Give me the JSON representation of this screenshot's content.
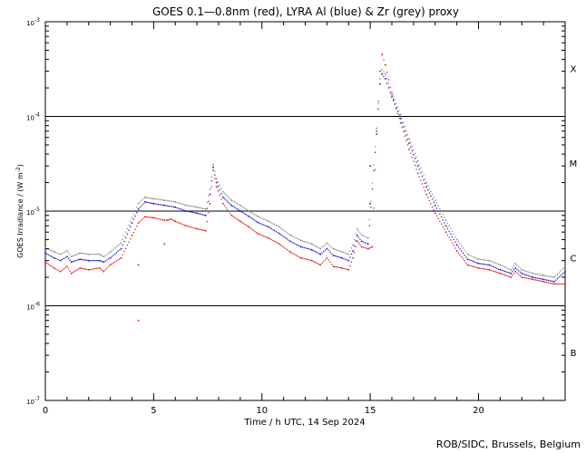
{
  "chart_data": {
    "type": "scatter",
    "title": "GOES 0.1—0.8nm (red), LYRA Al (blue) & Zr (grey) proxy",
    "xlabel": "Time / h UTC, 14 Sep 2024",
    "ylabel": "GOES Irradiance / (W m",
    "ylabel_exp": "-2",
    "ylabel_close": ")",
    "x_range": [
      0,
      24
    ],
    "y_range": [
      1e-07,
      0.001
    ],
    "y_scale": "log",
    "x_ticks": [
      {
        "value": 0,
        "label": "0"
      },
      {
        "value": 5,
        "label": "5"
      },
      {
        "value": 10,
        "label": "10"
      },
      {
        "value": 15,
        "label": "15"
      },
      {
        "value": 20,
        "label": "20"
      }
    ],
    "y_ticks": [
      {
        "value": 0.001,
        "base": "10",
        "exp": "-3"
      },
      {
        "value": 0.0001,
        "base": "10",
        "exp": "-4"
      },
      {
        "value": 1e-05,
        "base": "10",
        "exp": "-5"
      },
      {
        "value": 1e-06,
        "base": "10",
        "exp": "-6"
      },
      {
        "value": 1e-07,
        "base": "10",
        "exp": "-7"
      }
    ],
    "reference_lines": [
      0.0001,
      1e-05,
      1e-06
    ],
    "flare_classes": [
      {
        "label": "X",
        "value": 0.00032
      },
      {
        "label": "M",
        "value": 3.2e-05
      },
      {
        "label": "C",
        "value": 3.2e-06
      },
      {
        "label": "B",
        "value": 3.2e-07
      }
    ],
    "series": [
      {
        "color": "#dd0000",
        "points": [
          [
            0,
            2.9e-06
          ],
          [
            0.4,
            2.5e-06
          ],
          [
            0.7,
            2.3e-06
          ],
          [
            1.0,
            2.6e-06
          ],
          [
            1.2,
            2.2e-06
          ],
          [
            1.6,
            2.5e-06
          ],
          [
            2.0,
            2.4e-06
          ],
          [
            2.5,
            2.5e-06
          ],
          [
            2.7,
            2.3e-06
          ],
          [
            3.0,
            2.7e-06
          ],
          [
            3.5,
            3.2e-06
          ],
          [
            4.0,
            5.5e-06
          ],
          [
            4.3,
            7.5e-06
          ],
          [
            4.6,
            8.7e-06
          ],
          [
            5.0,
            8.5e-06
          ],
          [
            5.5,
            8e-06
          ],
          [
            5.6,
            8e-06
          ],
          [
            5.8,
            8.2e-06
          ],
          [
            6.0,
            7.8e-06
          ],
          [
            6.5,
            7e-06
          ],
          [
            7.0,
            6.5e-06
          ],
          [
            7.4,
            6.2e-06
          ],
          [
            7.6,
            1.2e-05
          ],
          [
            7.75,
            2.7e-05
          ],
          [
            7.9,
            1.8e-05
          ],
          [
            8.2,
            1.2e-05
          ],
          [
            8.6,
            9e-06
          ],
          [
            9.0,
            7.8e-06
          ],
          [
            9.4,
            6.8e-06
          ],
          [
            9.8,
            5.8e-06
          ],
          [
            10.3,
            5.2e-06
          ],
          [
            10.8,
            4.5e-06
          ],
          [
            11.3,
            3.7e-06
          ],
          [
            11.8,
            3.2e-06
          ],
          [
            12.3,
            3e-06
          ],
          [
            12.7,
            2.7e-06
          ],
          [
            13.0,
            3.2e-06
          ],
          [
            13.3,
            2.6e-06
          ],
          [
            13.7,
            2.5e-06
          ],
          [
            14.0,
            2.4e-06
          ],
          [
            14.2,
            3.2e-06
          ],
          [
            14.4,
            4.8e-06
          ],
          [
            14.6,
            4.2e-06
          ],
          [
            14.9,
            4e-06
          ],
          [
            15.1,
            4.2e-06
          ],
          [
            15.3,
            7e-05
          ],
          [
            15.45,
            0.0003
          ],
          [
            15.55,
            0.00045
          ],
          [
            15.7,
            0.00035
          ],
          [
            16.0,
            0.00017
          ],
          [
            16.4,
            8.5e-05
          ],
          [
            16.8,
            4.5e-05
          ],
          [
            17.2,
            2.5e-05
          ],
          [
            17.6,
            1.5e-05
          ],
          [
            18.0,
            9.5e-06
          ],
          [
            18.5,
            6e-06
          ],
          [
            19.0,
            3.8e-06
          ],
          [
            19.5,
            2.7e-06
          ],
          [
            20.0,
            2.5e-06
          ],
          [
            20.5,
            2.4e-06
          ],
          [
            21.0,
            2.2e-06
          ],
          [
            21.5,
            2e-06
          ],
          [
            21.7,
            2.3e-06
          ],
          [
            22.0,
            2e-06
          ],
          [
            22.5,
            1.9e-06
          ],
          [
            23.0,
            1.8e-06
          ],
          [
            23.5,
            1.7e-06
          ],
          [
            24.0,
            1.7e-06
          ]
        ]
      },
      {
        "color": "#0000cc",
        "points": [
          [
            0,
            3.6e-06
          ],
          [
            0.4,
            3.2e-06
          ],
          [
            0.7,
            3e-06
          ],
          [
            1.0,
            3.3e-06
          ],
          [
            1.2,
            2.9e-06
          ],
          [
            1.6,
            3.1e-06
          ],
          [
            2.0,
            3e-06
          ],
          [
            2.5,
            3e-06
          ],
          [
            2.7,
            2.9e-06
          ],
          [
            3.0,
            3.2e-06
          ],
          [
            3.5,
            4e-06
          ],
          [
            4.0,
            7.5e-06
          ],
          [
            4.3,
            1.05e-05
          ],
          [
            4.6,
            1.25e-05
          ],
          [
            5.0,
            1.2e-05
          ],
          [
            5.5,
            1.15e-05
          ],
          [
            6.0,
            1.1e-05
          ],
          [
            6.5,
            1e-05
          ],
          [
            7.0,
            9.5e-06
          ],
          [
            7.4,
            9e-06
          ],
          [
            7.6,
            1.5e-05
          ],
          [
            7.75,
            2.9e-05
          ],
          [
            7.9,
            2e-05
          ],
          [
            8.2,
            1.4e-05
          ],
          [
            8.6,
            1.15e-05
          ],
          [
            9.0,
            1e-05
          ],
          [
            9.4,
            8.8e-06
          ],
          [
            9.8,
            7.6e-06
          ],
          [
            10.3,
            6.8e-06
          ],
          [
            10.8,
            5.8e-06
          ],
          [
            11.3,
            4.8e-06
          ],
          [
            11.8,
            4.2e-06
          ],
          [
            12.3,
            3.9e-06
          ],
          [
            12.7,
            3.5e-06
          ],
          [
            13.0,
            4e-06
          ],
          [
            13.3,
            3.4e-06
          ],
          [
            13.7,
            3.2e-06
          ],
          [
            14.0,
            3e-06
          ],
          [
            14.2,
            3.8e-06
          ],
          [
            14.4,
            5.5e-06
          ],
          [
            14.6,
            4.8e-06
          ],
          [
            14.9,
            4.5e-06
          ],
          [
            15.3,
            6.5e-05
          ],
          [
            15.45,
            0.00022
          ],
          [
            15.55,
            0.00028
          ],
          [
            15.7,
            0.00025
          ],
          [
            16.0,
            0.00016
          ],
          [
            16.4,
            9.5e-05
          ],
          [
            16.8,
            5.2e-05
          ],
          [
            17.2,
            3e-05
          ],
          [
            17.6,
            1.8e-05
          ],
          [
            18.0,
            1.15e-05
          ],
          [
            18.5,
            7e-06
          ],
          [
            19.0,
            4.4e-06
          ],
          [
            19.5,
            3.1e-06
          ],
          [
            20.0,
            2.8e-06
          ],
          [
            20.5,
            2.7e-06
          ],
          [
            21.0,
            2.4e-06
          ],
          [
            21.5,
            2.2e-06
          ],
          [
            21.7,
            2.5e-06
          ],
          [
            22.0,
            2.2e-06
          ],
          [
            22.5,
            2e-06
          ],
          [
            23.0,
            1.9e-06
          ],
          [
            23.5,
            1.8e-06
          ],
          [
            24.0,
            2.3e-06
          ]
        ]
      },
      {
        "color": "#808080",
        "points": [
          [
            0,
            4.1e-06
          ],
          [
            0.4,
            3.7e-06
          ],
          [
            0.7,
            3.5e-06
          ],
          [
            1.0,
            3.8e-06
          ],
          [
            1.2,
            3.3e-06
          ],
          [
            1.6,
            3.6e-06
          ],
          [
            2.0,
            3.5e-06
          ],
          [
            2.5,
            3.5e-06
          ],
          [
            2.7,
            3.3e-06
          ],
          [
            3.0,
            3.7e-06
          ],
          [
            3.5,
            4.6e-06
          ],
          [
            4.0,
            8.5e-06
          ],
          [
            4.3,
            1.2e-05
          ],
          [
            4.6,
            1.4e-05
          ],
          [
            5.0,
            1.35e-05
          ],
          [
            5.5,
            1.3e-05
          ],
          [
            6.0,
            1.25e-05
          ],
          [
            6.5,
            1.15e-05
          ],
          [
            7.0,
            1.1e-05
          ],
          [
            7.4,
            1.05e-05
          ],
          [
            7.6,
            1.7e-05
          ],
          [
            7.75,
            3.1e-05
          ],
          [
            7.9,
            2.2e-05
          ],
          [
            8.2,
            1.6e-05
          ],
          [
            8.6,
            1.3e-05
          ],
          [
            9.0,
            1.15e-05
          ],
          [
            9.4,
            1e-05
          ],
          [
            9.8,
            8.8e-06
          ],
          [
            10.3,
            7.8e-06
          ],
          [
            10.8,
            6.8e-06
          ],
          [
            11.3,
            5.6e-06
          ],
          [
            11.8,
            4.9e-06
          ],
          [
            12.3,
            4.5e-06
          ],
          [
            12.7,
            4e-06
          ],
          [
            13.0,
            4.6e-06
          ],
          [
            13.3,
            4e-06
          ],
          [
            13.7,
            3.7e-06
          ],
          [
            14.0,
            3.5e-06
          ],
          [
            14.2,
            4.4e-06
          ],
          [
            14.4,
            6.5e-06
          ],
          [
            14.6,
            5.6e-06
          ],
          [
            14.9,
            5.2e-06
          ],
          [
            15.3,
            7.5e-05
          ],
          [
            15.45,
            0.00025
          ],
          [
            15.55,
            0.00031
          ],
          [
            15.7,
            0.00028
          ],
          [
            16.0,
            0.00018
          ],
          [
            16.4,
            0.000105
          ],
          [
            16.8,
            5.8e-05
          ],
          [
            17.2,
            3.4e-05
          ],
          [
            17.6,
            2e-05
          ],
          [
            18.0,
            1.3e-05
          ],
          [
            18.5,
            8e-06
          ],
          [
            19.0,
            5e-06
          ],
          [
            19.5,
            3.5e-06
          ],
          [
            20.0,
            3.1e-06
          ],
          [
            20.5,
            3e-06
          ],
          [
            21.0,
            2.7e-06
          ],
          [
            21.5,
            2.4e-06
          ],
          [
            21.7,
            2.8e-06
          ],
          [
            22.0,
            2.4e-06
          ],
          [
            22.5,
            2.2e-06
          ],
          [
            23.0,
            2.1e-06
          ],
          [
            23.5,
            2e-06
          ],
          [
            24.0,
            2.6e-06
          ]
        ]
      }
    ],
    "outliers": [
      {
        "x": 4.3,
        "y": 2.7e-06,
        "color": "#dd0000"
      },
      {
        "x": 4.3,
        "y": 7e-07,
        "color": "#dd0000"
      },
      {
        "x": 5.5,
        "y": 4.5e-06,
        "color": "#dd0000"
      },
      {
        "x": 15.0,
        "y": 1.2e-05,
        "color": "#0000cc"
      },
      {
        "x": 15.0,
        "y": 3e-05,
        "color": "#0000cc"
      }
    ]
  },
  "footer": {
    "credit": "ROB/SIDC, Brussels, Belgium"
  }
}
